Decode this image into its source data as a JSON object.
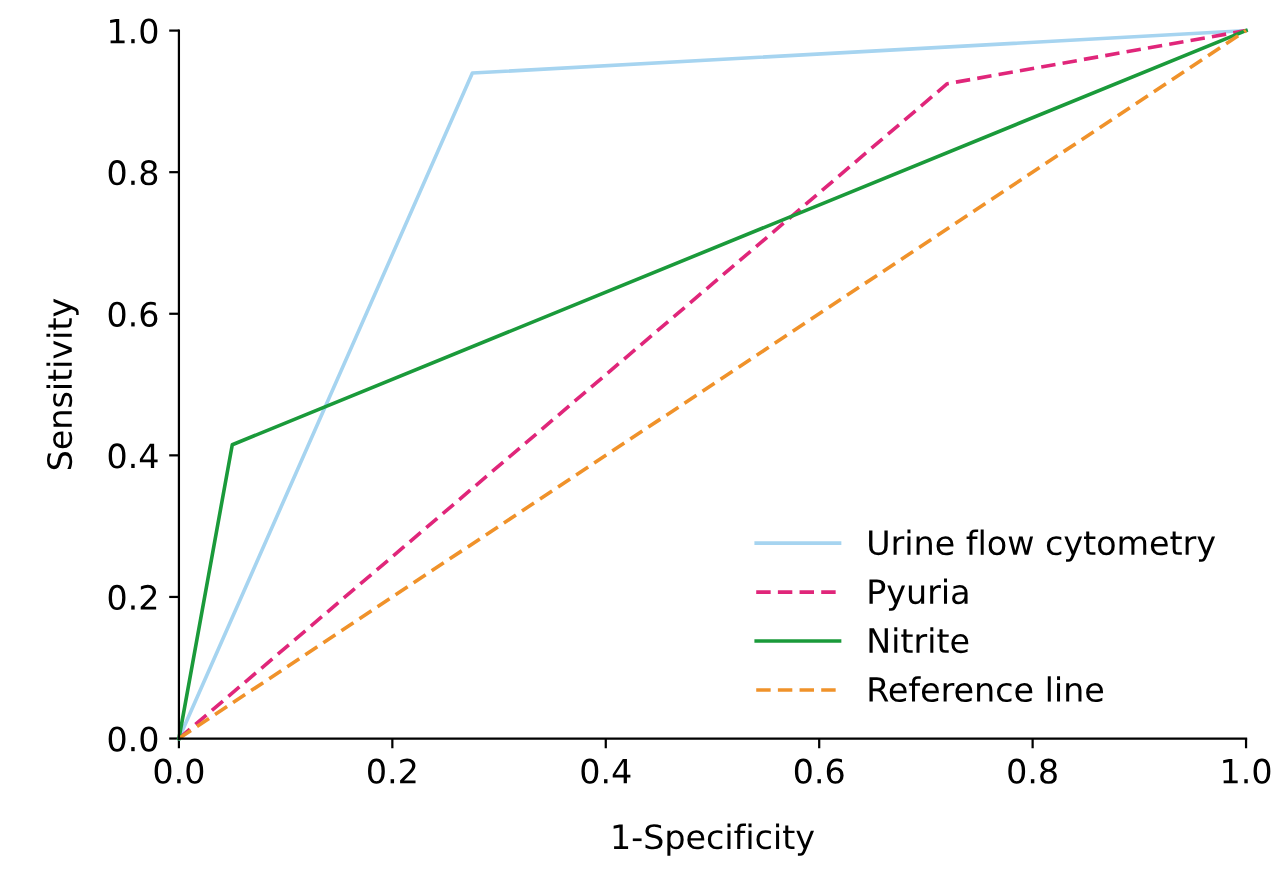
{
  "chart_data": {
    "type": "line",
    "xlabel": "1-Specificity",
    "ylabel": "Sensitivity",
    "xlim": [
      0,
      1
    ],
    "ylim": [
      0,
      1
    ],
    "xticks": [
      {
        "value": 0,
        "label": "0.0"
      },
      0.2,
      0.4,
      0.6,
      0.8,
      {
        "value": 1,
        "label": "1.0"
      }
    ],
    "yticks": [
      {
        "value": 0,
        "label": "0.0"
      },
      0.2,
      0.4,
      0.6,
      0.8,
      {
        "value": 1,
        "label": "1.0"
      }
    ],
    "grid": false,
    "legend": "bottom right",
    "marker": "none",
    "series": [
      {
        "name": "Urine flow cytometry",
        "color": "#a6d4f0",
        "x": [
          0,
          0.275,
          1
        ],
        "values": [
          0,
          0.94,
          1
        ],
        "line_style": "solid"
      },
      {
        "name": "Pyuria",
        "color": "#e0267a",
        "x": [
          0,
          0.72,
          1
        ],
        "values": [
          0,
          0.925,
          1
        ],
        "line_style": "dashed"
      },
      {
        "name": "Nitrite",
        "color": "#1a9a3a",
        "x": [
          0,
          0.05,
          1
        ],
        "values": [
          0,
          0.415,
          1
        ],
        "line_style": "solid"
      },
      {
        "name": "Reference line",
        "color": "#f0922a",
        "x": [
          0,
          1
        ],
        "values": [
          0,
          1
        ],
        "line_style": "dashed"
      }
    ]
  }
}
